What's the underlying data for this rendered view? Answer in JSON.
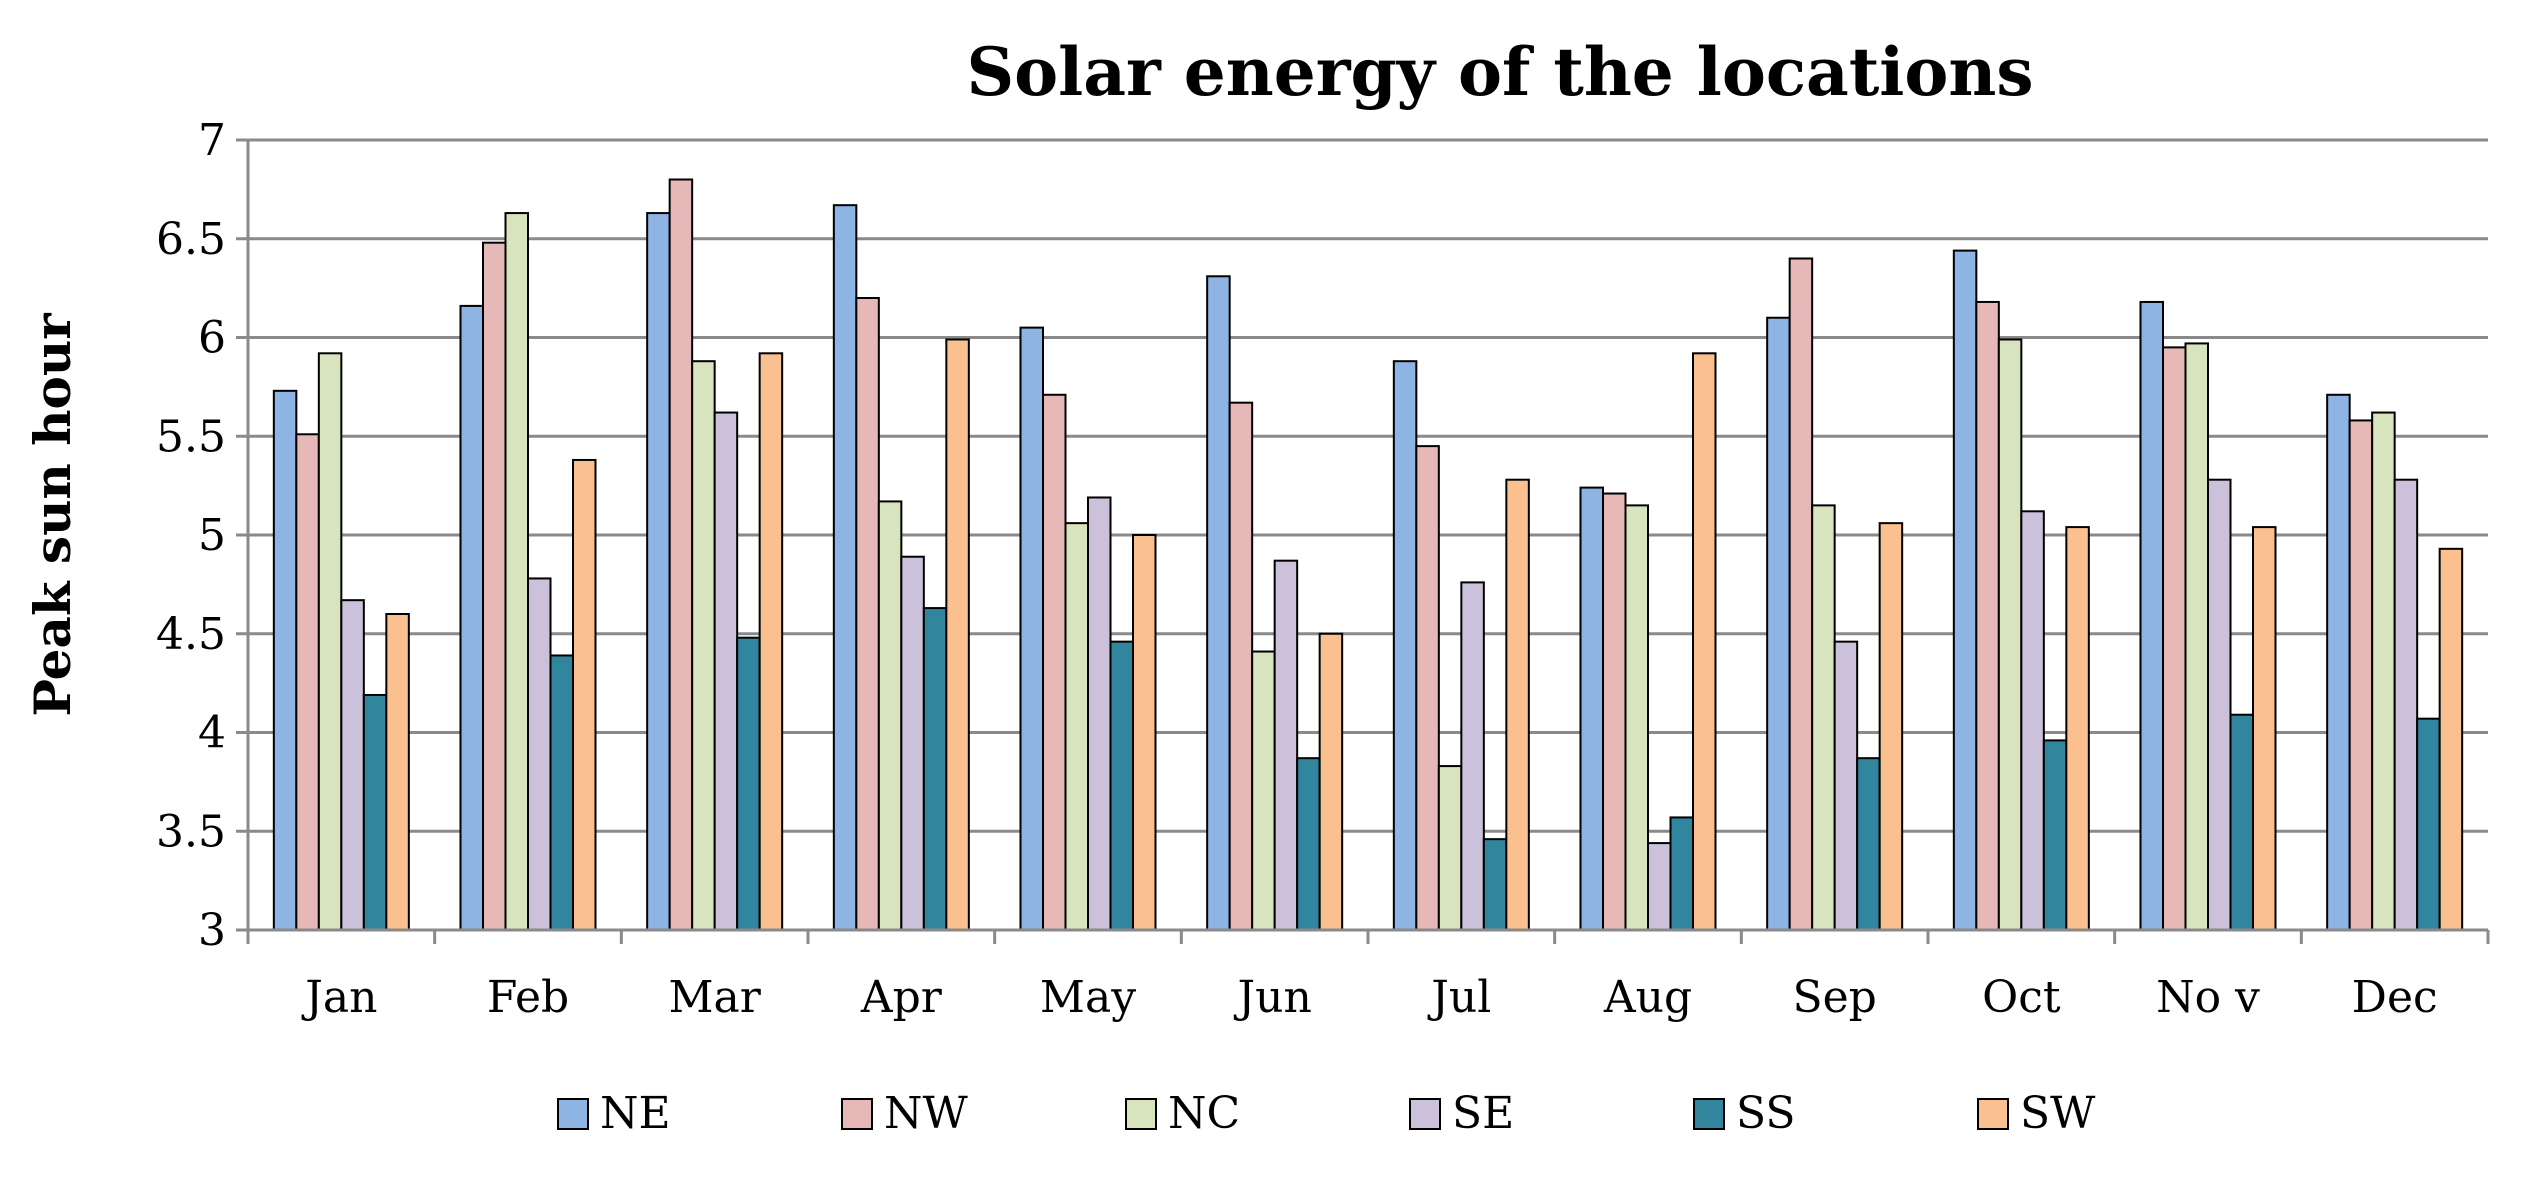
{
  "chart_data": {
    "type": "bar",
    "title": "Solar energy of the locations",
    "xlabel": "",
    "ylabel": "Peak sun hour",
    "ylim": [
      3,
      7
    ],
    "yticks": [
      3,
      3.5,
      4,
      4.5,
      5,
      5.5,
      6,
      6.5,
      7
    ],
    "ytick_labels": [
      "3",
      "3.5",
      "4",
      "4.5",
      "5",
      "5.5",
      "6",
      "6.5",
      "7"
    ],
    "grid": true,
    "legend_position": "bottom",
    "categories": [
      "Jan",
      "Feb",
      "Mar",
      "Apr",
      "May",
      "Jun",
      "Jul",
      "Aug",
      "Sep",
      "Oct",
      "No v",
      "Dec"
    ],
    "series": [
      {
        "name": "NE",
        "color": "#8EB4E3",
        "values": [
          5.73,
          6.16,
          6.63,
          6.67,
          6.05,
          6.31,
          5.88,
          5.24,
          6.1,
          6.44,
          6.18,
          5.71
        ]
      },
      {
        "name": "NW",
        "color": "#E6B9B8",
        "values": [
          5.51,
          6.48,
          6.8,
          6.2,
          5.71,
          5.67,
          5.45,
          5.21,
          6.4,
          6.18,
          5.95,
          5.58
        ]
      },
      {
        "name": "NC",
        "color": "#D7E4BD",
        "values": [
          5.92,
          6.63,
          5.88,
          5.17,
          5.06,
          4.41,
          3.83,
          5.15,
          5.15,
          5.99,
          5.97,
          5.62
        ]
      },
      {
        "name": "SE",
        "color": "#CCC1DA",
        "values": [
          4.67,
          4.78,
          5.62,
          4.89,
          5.19,
          4.87,
          4.76,
          3.44,
          4.46,
          5.12,
          5.28,
          5.28
        ]
      },
      {
        "name": "SS",
        "color": "#31859C",
        "values": [
          4.19,
          4.39,
          4.48,
          4.63,
          4.46,
          3.87,
          3.46,
          3.57,
          3.87,
          3.96,
          4.09,
          4.07
        ]
      },
      {
        "name": "SW",
        "color": "#FAC090",
        "values": [
          4.6,
          5.38,
          5.92,
          5.99,
          5.0,
          4.5,
          5.28,
          5.92,
          5.06,
          5.04,
          5.04,
          4.93
        ]
      }
    ]
  }
}
